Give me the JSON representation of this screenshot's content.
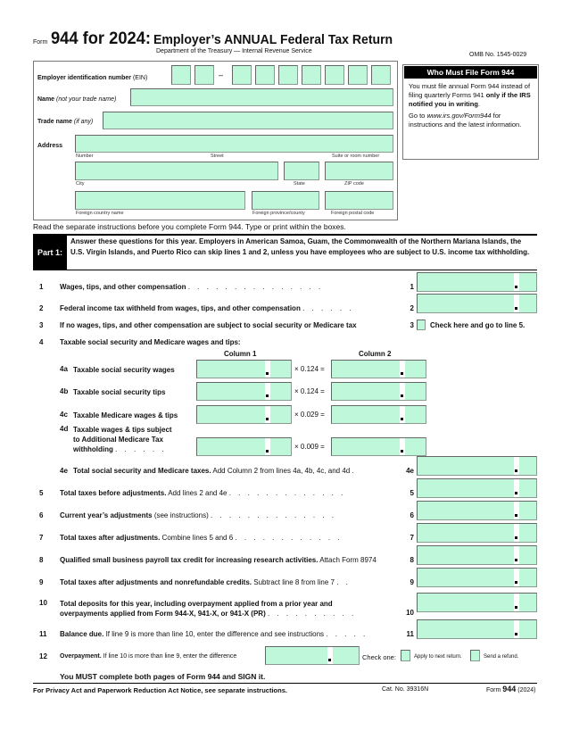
{
  "header": {
    "form_word": "Form",
    "form_title": "944 for 2024:",
    "title": "Employer’s ANNUAL Federal Tax Return",
    "dept": "Department of the Treasury — Internal Revenue Service",
    "omb": "OMB No. 1545-0029"
  },
  "identity": {
    "ein_bold": "Employer identification number",
    "ein_normal": " (EIN)",
    "ein_dash": "–",
    "name_bold": "Name",
    "name_italic": " (not your trade name)",
    "trade_bold": "Trade name",
    "trade_italic": " (if any)",
    "address": "Address",
    "number": "Number",
    "street": "Street",
    "suite": "Suite or room number",
    "city": "City",
    "state": "State",
    "zip": "ZIP code",
    "foreign_country": "Foreign country name",
    "foreign_province": "Foreign province/county",
    "foreign_postal": "Foreign postal code"
  },
  "who_must_file": {
    "title": "Who Must File Form 944",
    "p1_a": "You must file annual Form 944 instead of filing quarterly Forms 941 ",
    "p1_bold": "only if the IRS notified you in writing",
    "p1_end": ".",
    "p2_a": "Go to ",
    "p2_link": "www.irs.gov/Form944",
    "p2_b": " for instructions and the latest information."
  },
  "read_note": "Read the separate instructions before you complete Form 944. Type or print within the boxes.",
  "part1": {
    "label": "Part 1:",
    "text": "Answer these questions for this year. Employers in American Samoa, Guam, the Commonwealth of the Northern Mariana Islands, the U.S. Virgin Islands, and Puerto Rico can skip lines 1 and 2, unless you have employees who are subject to U.S. income tax withholding."
  },
  "lines": [
    {
      "num": "1",
      "bold": "Wages, tips, and other compensation",
      "normal": "",
      "dots": ". . . . . . . . . . . . . . .",
      "ref": "1"
    },
    {
      "num": "2",
      "bold": "Federal income tax withheld from wages, tips, and other compensation",
      "normal": "",
      "dots": ". . . . . .",
      "ref": "2"
    },
    {
      "num": "4e",
      "bold": "Total social security and Medicare taxes.",
      "normal": " Add Column 2 from lines 4a, 4b, 4c, and 4d",
      "dots": ".",
      "ref": "4e"
    },
    {
      "num": "5",
      "bold": "Total taxes before adjustments.",
      "normal": " Add lines 2 and 4e",
      "dots": ". . . . . . . . . . . . .",
      "ref": "5"
    },
    {
      "num": "6",
      "bold": "Current year’s adjustments",
      "normal": " (see instructions)",
      "dots": ". . . . . . . . . . . . . .",
      "ref": "6"
    },
    {
      "num": "7",
      "bold": "Total taxes after adjustments.",
      "normal": " Combine lines 5 and 6",
      "dots": ". . . . . . . . . . . .",
      "ref": "7"
    },
    {
      "num": "8",
      "bold": "Qualified small business payroll tax credit for increasing research activities.",
      "normal": " Attach Form 8974",
      "dots": "",
      "ref": "8"
    },
    {
      "num": "9",
      "bold": "Total taxes after adjustments and nonrefundable credits.",
      "normal": " Subtract line 8 from line 7",
      "dots": ". .",
      "ref": "9"
    },
    {
      "num": "10",
      "bold": "Total deposits for this year, including overpayment applied from a prior year and",
      "bold2": "overpayments applied from Form 944-X, 941-X, or 941-X (PR)",
      "normal": "",
      "dots": ". . . . . . . . . .",
      "ref": "10"
    },
    {
      "num": "11",
      "bold": "Balance due.",
      "normal": " If line 9 is more than line 10, enter the difference and see instructions",
      "dots": ". . . . .",
      "ref": "11"
    }
  ],
  "line3": {
    "num": "3",
    "text": "If no wages, tips, and other compensation are subject to social security or Medicare tax",
    "ref": "3",
    "check": "Check here and go to line 5."
  },
  "line4": {
    "num": "4",
    "text": "Taxable social security and Medicare wages and tips:",
    "col1": "Column 1",
    "col2": "Column 2",
    "rows": [
      {
        "id": "4a",
        "text": "Taxable social security wages",
        "rate": "× 0.124 ="
      },
      {
        "id": "4b",
        "text": "Taxable social security tips",
        "rate": "× 0.124 ="
      },
      {
        "id": "4c",
        "text": "Taxable Medicare wages & tips",
        "rate": "× 0.029 ="
      },
      {
        "id": "4d",
        "text": "Taxable wages & tips subject",
        "text2": "to Additional Medicare Tax",
        "text3": "withholding",
        "dots": ". . . . . .",
        "rate": "× 0.009 ="
      }
    ]
  },
  "line12": {
    "num": "12",
    "bold": "Overpayment.",
    "normal": " If line 10 is more than line 9, enter the difference",
    "check_one": "Check one:",
    "opt1": "Apply to next return.",
    "opt2": "Send a refund."
  },
  "must_sign": "You MUST complete both pages of Form 944 and SIGN it.",
  "footer": {
    "privacy": "For Privacy Act and Paperwork Reduction Act Notice, see separate instructions.",
    "cat": "Cat. No. 39316N",
    "form_word": "Form ",
    "form_num": "944",
    "year": " (2024)"
  },
  "colors": {
    "field": "#bff7da",
    "black": "#000000"
  }
}
